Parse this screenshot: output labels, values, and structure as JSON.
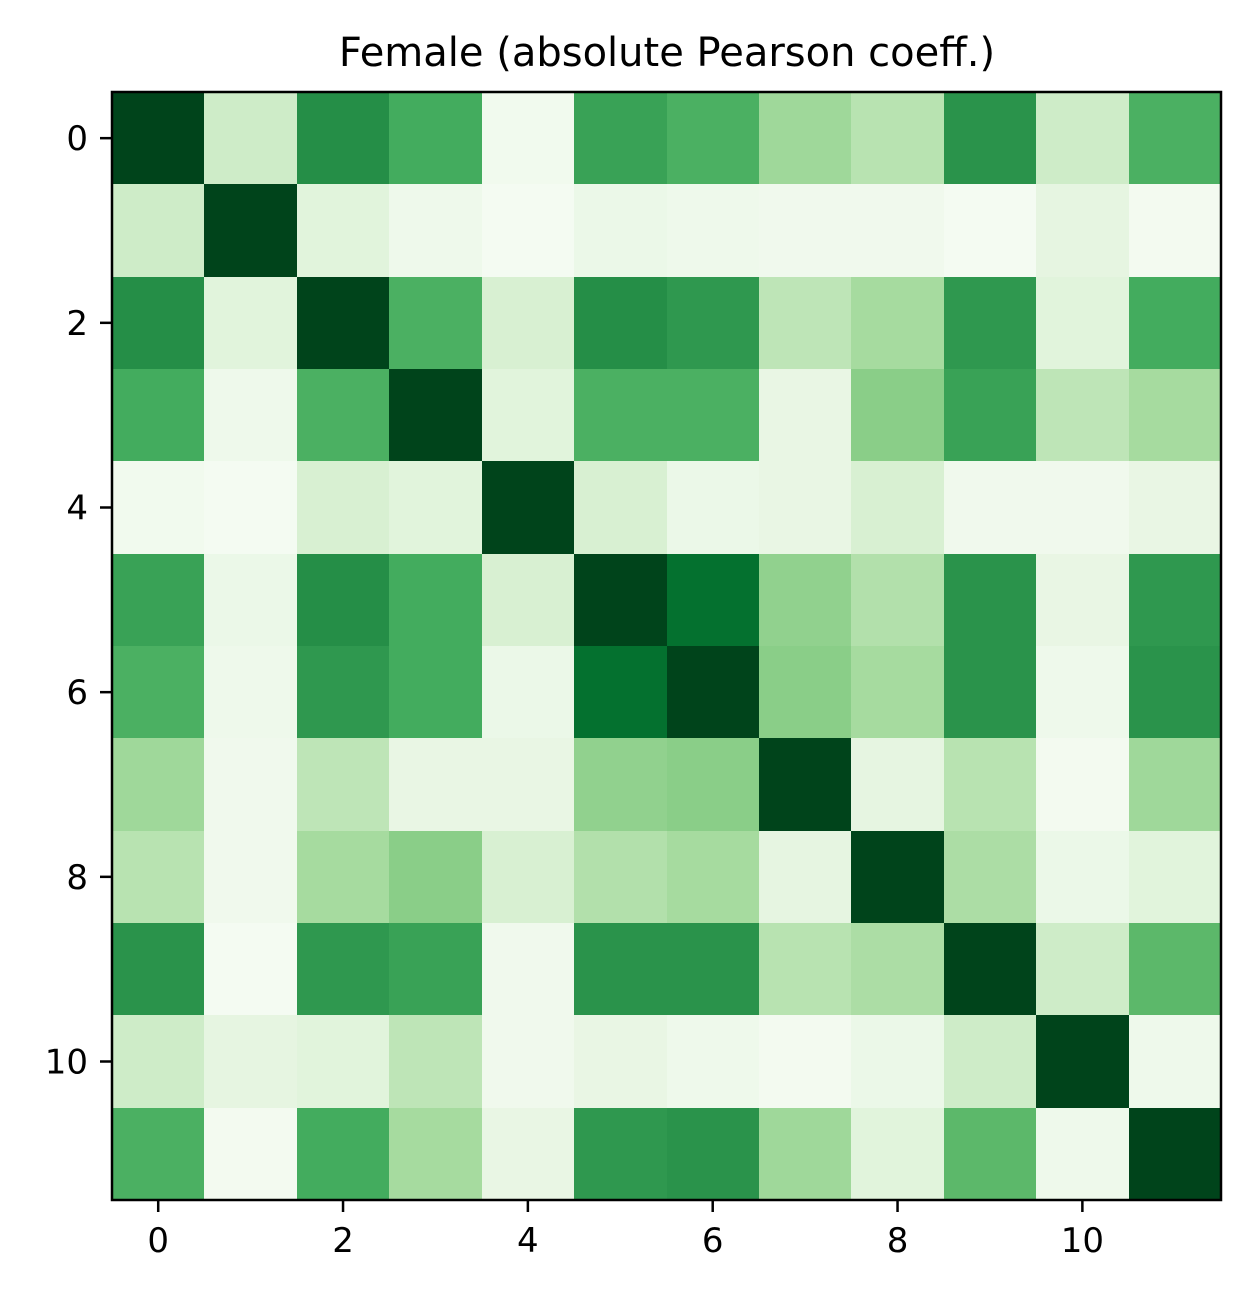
{
  "chart_data": {
    "type": "heatmap",
    "title": "Female (absolute Pearson coeff.)",
    "xlabel": "",
    "ylabel": "",
    "colormap": "Greens",
    "colormap_stops": [
      "#f7fcf5",
      "#e5f5e0",
      "#c7e9c0",
      "#a1d99b",
      "#74c476",
      "#41ab5d",
      "#238b45",
      "#006d2c",
      "#00441b"
    ],
    "value_range": [
      0,
      1
    ],
    "rows": 12,
    "cols": 12,
    "x_ticks": [
      0,
      2,
      4,
      6,
      8,
      10
    ],
    "y_ticks": [
      0,
      2,
      4,
      6,
      8,
      10
    ],
    "x_tick_labels": [
      "0",
      "2",
      "4",
      "6",
      "8",
      "10"
    ],
    "y_tick_labels": [
      "0",
      "2",
      "4",
      "6",
      "8",
      "10"
    ],
    "xlim": [
      -0.5,
      11.5
    ],
    "ylim": [
      11.5,
      -0.5
    ],
    "grid": false,
    "matrix": [
      [
        1.0,
        0.22,
        0.74,
        0.62,
        0.04,
        0.66,
        0.6,
        0.38,
        0.3,
        0.72,
        0.22,
        0.6
      ],
      [
        0.22,
        1.0,
        0.14,
        0.06,
        0.02,
        0.08,
        0.06,
        0.05,
        0.05,
        0.02,
        0.12,
        0.03
      ],
      [
        0.74,
        0.14,
        1.0,
        0.6,
        0.18,
        0.74,
        0.7,
        0.28,
        0.36,
        0.7,
        0.14,
        0.62
      ],
      [
        0.62,
        0.06,
        0.6,
        1.0,
        0.14,
        0.6,
        0.6,
        0.1,
        0.44,
        0.66,
        0.28,
        0.36
      ],
      [
        0.04,
        0.02,
        0.18,
        0.14,
        1.0,
        0.18,
        0.08,
        0.1,
        0.18,
        0.05,
        0.05,
        0.1
      ],
      [
        0.66,
        0.08,
        0.74,
        0.62,
        0.18,
        1.0,
        0.86,
        0.42,
        0.32,
        0.72,
        0.1,
        0.7
      ],
      [
        0.6,
        0.06,
        0.7,
        0.62,
        0.08,
        0.86,
        1.0,
        0.44,
        0.36,
        0.72,
        0.06,
        0.72
      ],
      [
        0.38,
        0.05,
        0.28,
        0.1,
        0.1,
        0.42,
        0.44,
        1.0,
        0.12,
        0.3,
        0.03,
        0.38
      ],
      [
        0.3,
        0.05,
        0.36,
        0.44,
        0.18,
        0.32,
        0.36,
        0.12,
        1.0,
        0.34,
        0.08,
        0.14
      ],
      [
        0.72,
        0.02,
        0.7,
        0.66,
        0.05,
        0.72,
        0.72,
        0.3,
        0.34,
        1.0,
        0.22,
        0.56
      ],
      [
        0.22,
        0.12,
        0.14,
        0.28,
        0.05,
        0.1,
        0.06,
        0.03,
        0.08,
        0.22,
        1.0,
        0.06
      ],
      [
        0.6,
        0.03,
        0.62,
        0.36,
        0.1,
        0.7,
        0.72,
        0.38,
        0.14,
        0.56,
        0.06,
        1.0
      ]
    ]
  }
}
